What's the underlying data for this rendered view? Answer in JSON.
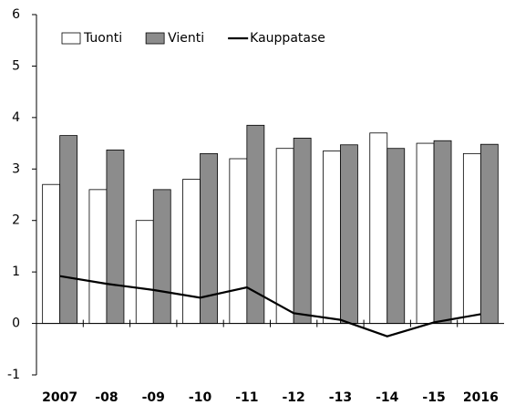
{
  "chart_data": {
    "type": "bar",
    "categories": [
      "2007",
      "-08",
      "-09",
      "-10",
      "-11",
      "-12",
      "-13",
      "-14",
      "-15",
      "2016"
    ],
    "series": [
      {
        "name": "Tuonti",
        "color": "#ffffff",
        "values": [
          2.7,
          2.6,
          2.0,
          2.8,
          3.2,
          3.4,
          3.35,
          3.7,
          3.5,
          3.3
        ]
      },
      {
        "name": "Vienti",
        "color": "#8c8c8c",
        "values": [
          3.65,
          3.37,
          2.6,
          3.3,
          3.85,
          3.6,
          3.47,
          3.4,
          3.55,
          3.48
        ]
      },
      {
        "name": "Kauppatase",
        "type": "line",
        "color": "#000000",
        "values": [
          0.92,
          0.77,
          0.65,
          0.5,
          0.7,
          0.2,
          0.07,
          -0.25,
          0.02,
          0.18
        ]
      }
    ],
    "ylim": [
      -1,
      6
    ],
    "yticks": [
      -1,
      0,
      1,
      2,
      3,
      4,
      5,
      6
    ],
    "grid": false,
    "legend": "upper left"
  }
}
